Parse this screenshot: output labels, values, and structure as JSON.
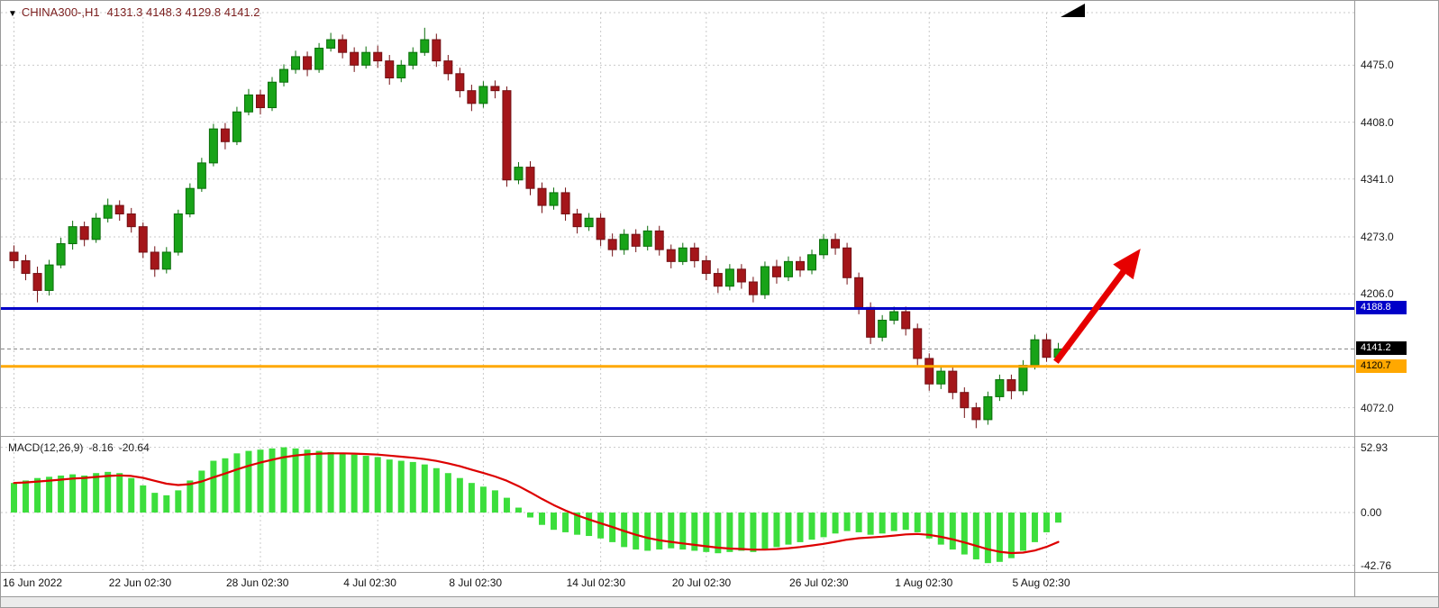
{
  "header": {
    "marker": "▼",
    "title": "CHINA300-,H1",
    "ohlc": "4131.3 4148.3 4129.8 4141.2"
  },
  "macd_header": {
    "name": "MACD(12,26,9)",
    "macd_value": "-8.16",
    "signal_value": "-20.64"
  },
  "colors": {
    "bull_fill": "#18A318",
    "bull_stroke": "#0A6E0A",
    "bear_fill": "#A4161A",
    "bear_stroke": "#731014",
    "histogram": "#3CDE3C",
    "signal_line": "#DD0000",
    "grid": "#c9c9c9",
    "arrow": "#E60000",
    "header_text": "#7b1e1e"
  },
  "chart_data": [
    {
      "type": "candlestick",
      "title": "CHINA300-,H1",
      "timeframe": "H1",
      "ylim": [
        4042,
        4540
      ],
      "grid": true,
      "y_ticks": [
        {
          "label": "4475.0",
          "value": 4475.0
        },
        {
          "label": "4408.0",
          "value": 4408.0
        },
        {
          "label": "4341.0",
          "value": 4341.0
        },
        {
          "label": "4273.0",
          "value": 4273.0
        },
        {
          "label": "4206.0",
          "value": 4206.0
        },
        {
          "label": "4072.0",
          "value": 4072.0
        }
      ],
      "x_ticks": [
        {
          "label": "16 Jun 2022",
          "index": 0
        },
        {
          "label": "22 Jun 02:30",
          "index": 11
        },
        {
          "label": "28 Jun 02:30",
          "index": 21
        },
        {
          "label": "4 Jul 02:30",
          "index": 31
        },
        {
          "label": "8 Jul 02:30",
          "index": 40
        },
        {
          "label": "14 Jul 02:30",
          "index": 50
        },
        {
          "label": "20 Jul 02:30",
          "index": 59
        },
        {
          "label": "26 Jul 02:30",
          "index": 69
        },
        {
          "label": "1 Aug 02:30",
          "index": 78
        },
        {
          "label": "5 Aug 02:30",
          "index": 88
        }
      ],
      "hlines": [
        {
          "price": 4188.8,
          "color": "#0000C8",
          "width": 3,
          "style": "solid",
          "label": "4188.8",
          "label_bg": "#0000C8",
          "label_fg": "#FFFFFF"
        },
        {
          "price": 4141.2,
          "color": "#808080",
          "width": 1,
          "style": "dashed",
          "label": "4141.2",
          "label_bg": "#000000",
          "label_fg": "#FFFFFF"
        },
        {
          "price": 4120.7,
          "color": "#FFA800",
          "width": 3,
          "style": "solid",
          "label": "4120.7",
          "label_bg": "#FFA800",
          "label_fg": "#000000"
        }
      ],
      "arrow": {
        "from_index": 89.3,
        "from_price": 4126,
        "to_index": 95.8,
        "to_price": 4246,
        "width": 7
      },
      "candles": [
        [
          4255,
          4263,
          4236,
          4245
        ],
        [
          4245,
          4252,
          4222,
          4230
        ],
        [
          4230,
          4238,
          4196,
          4210
        ],
        [
          4210,
          4246,
          4204,
          4240
        ],
        [
          4240,
          4272,
          4236,
          4265
        ],
        [
          4265,
          4292,
          4258,
          4285
        ],
        [
          4285,
          4291,
          4262,
          4270
        ],
        [
          4270,
          4301,
          4266,
          4295
        ],
        [
          4295,
          4318,
          4290,
          4310
        ],
        [
          4310,
          4316,
          4292,
          4300
        ],
        [
          4300,
          4307,
          4278,
          4285
        ],
        [
          4285,
          4290,
          4248,
          4255
        ],
        [
          4255,
          4262,
          4226,
          4235
        ],
        [
          4235,
          4261,
          4230,
          4255
        ],
        [
          4255,
          4305,
          4251,
          4300
        ],
        [
          4300,
          4336,
          4296,
          4330
        ],
        [
          4330,
          4366,
          4326,
          4360
        ],
        [
          4360,
          4406,
          4356,
          4400
        ],
        [
          4400,
          4407,
          4376,
          4385
        ],
        [
          4385,
          4426,
          4381,
          4420
        ],
        [
          4420,
          4447,
          4416,
          4440
        ],
        [
          4440,
          4446,
          4417,
          4425
        ],
        [
          4425,
          4461,
          4421,
          4455
        ],
        [
          4455,
          4476,
          4450,
          4470
        ],
        [
          4470,
          4492,
          4465,
          4485
        ],
        [
          4485,
          4491,
          4462,
          4470
        ],
        [
          4470,
          4501,
          4466,
          4495
        ],
        [
          4495,
          4513,
          4491,
          4505
        ],
        [
          4505,
          4511,
          4483,
          4490
        ],
        [
          4490,
          4496,
          4467,
          4475
        ],
        [
          4475,
          4497,
          4471,
          4490
        ],
        [
          4490,
          4498,
          4472,
          4480
        ],
        [
          4480,
          4487,
          4452,
          4460
        ],
        [
          4460,
          4481,
          4455,
          4475
        ],
        [
          4475,
          4496,
          4470,
          4490
        ],
        [
          4490,
          4519,
          4486,
          4505
        ],
        [
          4505,
          4512,
          4473,
          4480
        ],
        [
          4480,
          4487,
          4457,
          4465
        ],
        [
          4465,
          4472,
          4437,
          4445
        ],
        [
          4445,
          4452,
          4421,
          4430
        ],
        [
          4430,
          4456,
          4425,
          4450
        ],
        [
          4450,
          4457,
          4436,
          4445
        ],
        [
          4445,
          4450,
          4332,
          4340
        ],
        [
          4340,
          4361,
          4335,
          4355
        ],
        [
          4355,
          4362,
          4322,
          4330
        ],
        [
          4330,
          4337,
          4301,
          4310
        ],
        [
          4310,
          4331,
          4305,
          4325
        ],
        [
          4325,
          4331,
          4292,
          4300
        ],
        [
          4300,
          4306,
          4277,
          4285
        ],
        [
          4285,
          4301,
          4280,
          4295
        ],
        [
          4295,
          4301,
          4262,
          4270
        ],
        [
          4270,
          4277,
          4250,
          4258
        ],
        [
          4258,
          4282,
          4252,
          4276
        ],
        [
          4276,
          4282,
          4255,
          4262
        ],
        [
          4262,
          4286,
          4257,
          4280
        ],
        [
          4280,
          4286,
          4251,
          4258
        ],
        [
          4258,
          4264,
          4236,
          4244
        ],
        [
          4244,
          4266,
          4240,
          4260
        ],
        [
          4260,
          4266,
          4237,
          4245
        ],
        [
          4245,
          4251,
          4222,
          4230
        ],
        [
          4230,
          4236,
          4207,
          4215
        ],
        [
          4215,
          4241,
          4210,
          4235
        ],
        [
          4235,
          4241,
          4212,
          4220
        ],
        [
          4220,
          4226,
          4196,
          4205
        ],
        [
          4205,
          4244,
          4200,
          4238
        ],
        [
          4238,
          4246,
          4218,
          4226
        ],
        [
          4226,
          4250,
          4221,
          4244
        ],
        [
          4244,
          4250,
          4226,
          4234
        ],
        [
          4234,
          4258,
          4229,
          4252
        ],
        [
          4252,
          4276,
          4247,
          4270
        ],
        [
          4270,
          4277,
          4252,
          4260
        ],
        [
          4260,
          4266,
          4217,
          4225
        ],
        [
          4225,
          4231,
          4182,
          4190
        ],
        [
          4190,
          4196,
          4147,
          4155
        ],
        [
          4155,
          4181,
          4150,
          4175
        ],
        [
          4175,
          4191,
          4170,
          4185
        ],
        [
          4185,
          4191,
          4157,
          4165
        ],
        [
          4165,
          4171,
          4122,
          4130
        ],
        [
          4130,
          4136,
          4092,
          4100
        ],
        [
          4100,
          4121,
          4094,
          4115
        ],
        [
          4115,
          4121,
          4082,
          4090
        ],
        [
          4090,
          4096,
          4060,
          4072
        ],
        [
          4072,
          4078,
          4048,
          4058
        ],
        [
          4058,
          4091,
          4052,
          4085
        ],
        [
          4085,
          4111,
          4080,
          4105
        ],
        [
          4105,
          4111,
          4082,
          4092
        ],
        [
          4092,
          4128,
          4087,
          4122
        ],
        [
          4122,
          4158,
          4117,
          4152
        ],
        [
          4152,
          4159,
          4126,
          4131.3
        ],
        [
          4131.3,
          4148.3,
          4129.8,
          4141.2
        ]
      ]
    },
    {
      "type": "bar",
      "title": "MACD(12,26,9)",
      "values_label": "-8.16 -20.64",
      "ylim": [
        -46,
        57
      ],
      "y_ticks": [
        {
          "label": "52.93",
          "value": 52.93
        },
        {
          "label": "0.00",
          "value": 0
        },
        {
          "label": "-42.76",
          "value": -42.76
        }
      ],
      "values": [
        24,
        26,
        28,
        29,
        30,
        31,
        30,
        32,
        33,
        32,
        28,
        22,
        16,
        14,
        18,
        26,
        34,
        42,
        44,
        48,
        50,
        51,
        52,
        52.93,
        52,
        51,
        50,
        49,
        48,
        47,
        46,
        45,
        43,
        42,
        41,
        39,
        36,
        32,
        28,
        24,
        21,
        18,
        12,
        4,
        -4,
        -10,
        -14,
        -16,
        -18,
        -19,
        -21,
        -24,
        -28,
        -30,
        -31,
        -30,
        -29,
        -30,
        -31,
        -32,
        -33,
        -32,
        -31,
        -32,
        -30,
        -28,
        -26,
        -24,
        -22,
        -20,
        -17,
        -15,
        -16,
        -18,
        -17,
        -15,
        -14,
        -16,
        -21,
        -26,
        -30,
        -34,
        -38,
        -41,
        -40,
        -37,
        -31,
        -24,
        -16,
        -8.16
      ],
      "signal_smoothing": 9
    }
  ]
}
